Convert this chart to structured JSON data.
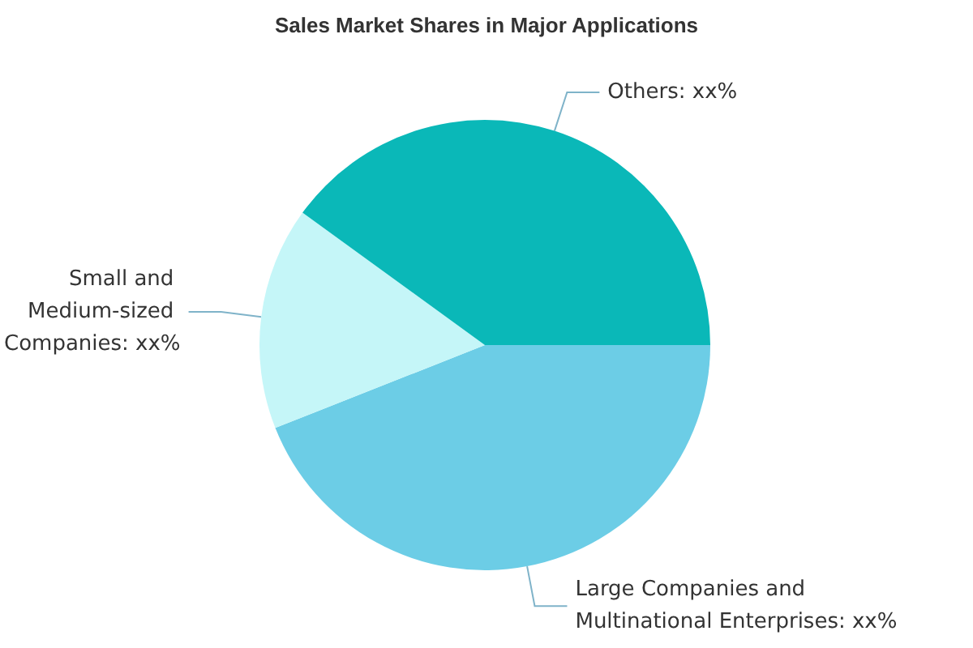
{
  "chart_data": {
    "type": "pie",
    "title": "Sales Market Shares in Major Applications",
    "categories": [
      "Large Companies and Multinational Enterprises",
      "Small and Medium-sized Companies",
      "Others"
    ],
    "values": [
      44,
      16,
      40
    ],
    "colors": [
      "#6ccde6",
      "#c5f6f8",
      "#0ab8b8"
    ],
    "value_labels": [
      "xx%",
      "xx%",
      "xx%"
    ],
    "legend": false
  }
}
